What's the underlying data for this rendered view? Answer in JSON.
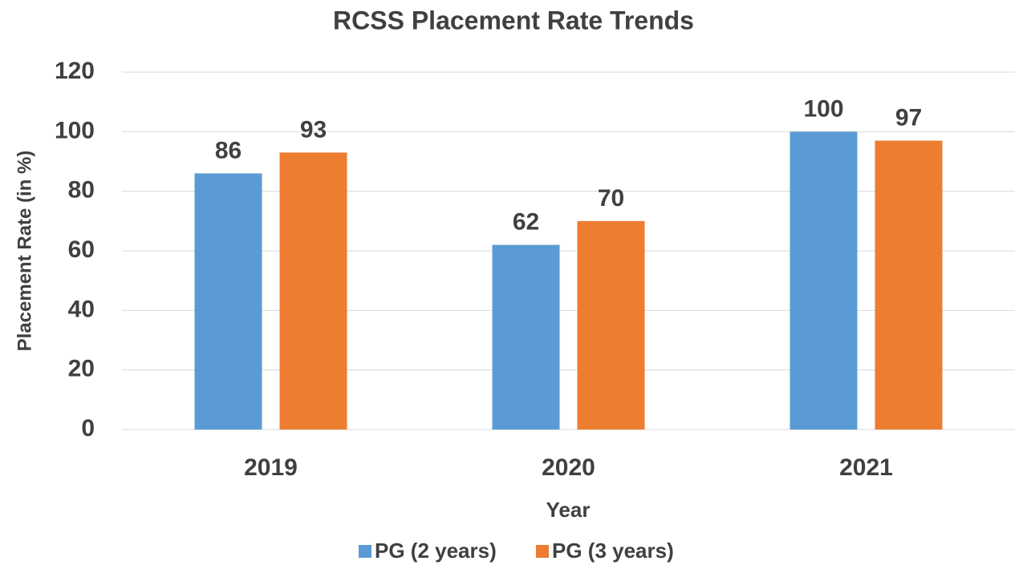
{
  "chart_data": {
    "type": "bar",
    "title": "RCSS Placement Rate Trends",
    "x_label": "Year",
    "y_label": "Placement Rate (in %)",
    "categories": [
      "2019",
      "2020",
      "2021"
    ],
    "series": [
      {
        "name": "PG (2 years)",
        "color": "#5b9bd5",
        "values": [
          86,
          62,
          100
        ]
      },
      {
        "name": "PG (3 years)",
        "color": "#ed7d31",
        "values": [
          93,
          70,
          97
        ]
      }
    ],
    "ylim": [
      0,
      120
    ],
    "yticks": [
      0,
      20,
      40,
      60,
      80,
      100,
      120
    ],
    "grid": true,
    "legend": "bottom"
  }
}
